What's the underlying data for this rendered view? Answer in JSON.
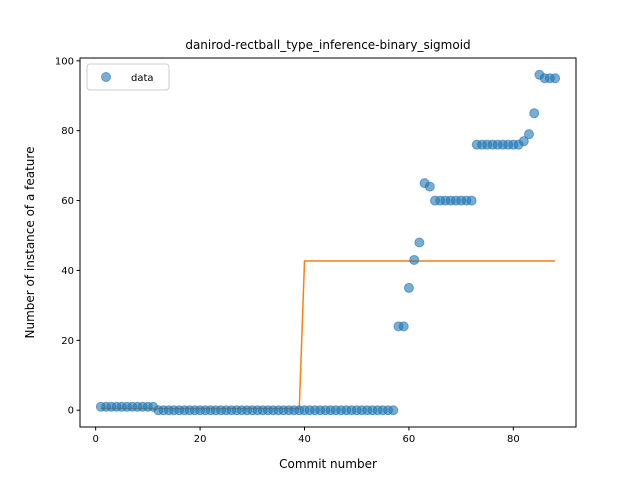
{
  "chart_data": {
    "type": "scatter",
    "title": "danirod-rectball_type_inference-binary_sigmoid",
    "xlabel": "Commit number",
    "ylabel": "Number of instance of a feature",
    "xlim": [
      -3,
      92
    ],
    "ylim": [
      -4.8,
      100.8
    ],
    "xticks": [
      0,
      20,
      40,
      60,
      80
    ],
    "yticks": [
      0,
      20,
      40,
      60,
      80,
      100
    ],
    "grid": false,
    "legend": {
      "placement": "top-left",
      "entries": [
        "data"
      ]
    },
    "colors": {
      "points": "#1f77b4",
      "fit_line": "#ff7f0e"
    },
    "series": [
      {
        "name": "data",
        "kind": "points",
        "x": [
          1,
          2,
          3,
          4,
          5,
          6,
          7,
          8,
          9,
          10,
          11,
          12,
          13,
          14,
          15,
          16,
          17,
          18,
          19,
          20,
          21,
          22,
          23,
          24,
          25,
          26,
          27,
          28,
          29,
          30,
          31,
          32,
          33,
          34,
          35,
          36,
          37,
          38,
          39,
          40,
          41,
          42,
          43,
          44,
          45,
          46,
          47,
          48,
          49,
          50,
          51,
          52,
          53,
          54,
          55,
          56,
          57,
          58,
          59,
          60,
          61,
          62,
          63,
          64,
          65,
          66,
          67,
          68,
          69,
          70,
          71,
          72,
          73,
          74,
          75,
          76,
          77,
          78,
          79,
          80,
          81,
          82,
          83,
          84,
          85,
          86,
          87,
          88
        ],
        "y": [
          1,
          1,
          1,
          1,
          1,
          1,
          1,
          1,
          1,
          1,
          1,
          0,
          0,
          0,
          0,
          0,
          0,
          0,
          0,
          0,
          0,
          0,
          0,
          0,
          0,
          0,
          0,
          0,
          0,
          0,
          0,
          0,
          0,
          0,
          0,
          0,
          0,
          0,
          0,
          0,
          0,
          0,
          0,
          0,
          0,
          0,
          0,
          0,
          0,
          0,
          0,
          0,
          0,
          0,
          0,
          0,
          0,
          24,
          24,
          35,
          43,
          48,
          65,
          64,
          60,
          60,
          60,
          60,
          60,
          60,
          60,
          60,
          76,
          76,
          76,
          76,
          76,
          76,
          76,
          76,
          76,
          77,
          79,
          85,
          96,
          95,
          95,
          95
        ]
      },
      {
        "kind": "line",
        "x": [
          1,
          39,
          40,
          88
        ],
        "y": [
          0.5,
          0.5,
          42.7,
          42.7
        ]
      }
    ]
  }
}
